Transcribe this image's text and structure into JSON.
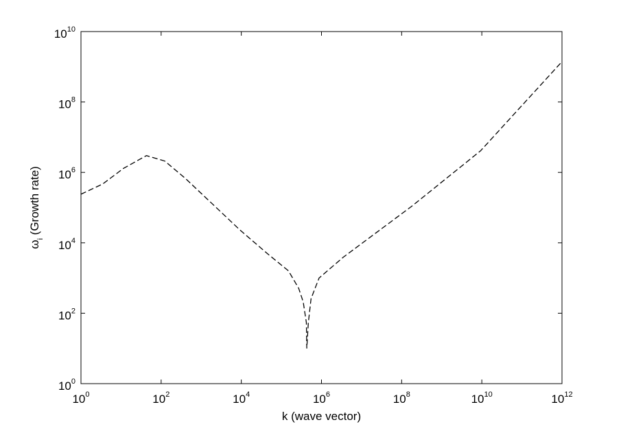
{
  "chart_data": {
    "type": "line",
    "xlabel": "k (wave vector)",
    "ylabel": {
      "symbol": "ω",
      "subscript": "i",
      "text": "(Growth rate)"
    },
    "x": [
      1,
      3.5,
      11.5,
      43,
      123,
      400,
      9300,
      46000,
      150000,
      270000,
      350000,
      420000,
      430000,
      470000,
      550000,
      870000,
      3500000,
      180000000,
      9300000000,
      1000000000000
    ],
    "series": [
      {
        "color": "#000000",
        "values": [
          240000,
          470000,
          1300000,
          3000000,
          2100000,
          680000,
          23000,
          4800,
          1600,
          510,
          210,
          54,
          10,
          54,
          260,
          1000,
          3900,
          110000,
          4100000,
          1400000000
        ]
      }
    ],
    "xscale": "log",
    "yscale": "log",
    "grid": false,
    "linestyle": "dashed",
    "xlim": [
      1,
      1000000000000
    ],
    "ylim": [
      1,
      10000000000
    ],
    "xticks": [
      {
        "value": 1,
        "label": "10",
        "exponent": "0"
      },
      {
        "value": 100,
        "label": "10",
        "exponent": "2"
      },
      {
        "value": 10000,
        "label": "10",
        "exponent": "4"
      },
      {
        "value": 1000000,
        "label": "10",
        "exponent": "6"
      },
      {
        "value": 100000000,
        "label": "10",
        "exponent": "8"
      },
      {
        "value": 10000000000,
        "label": "10",
        "exponent": "10"
      },
      {
        "value": 1000000000000,
        "label": "10",
        "exponent": "12"
      }
    ],
    "yticks": [
      {
        "value": 1,
        "label": "10",
        "exponent": "0"
      },
      {
        "value": 100,
        "label": "10",
        "exponent": "2"
      },
      {
        "value": 10000,
        "label": "10",
        "exponent": "4"
      },
      {
        "value": 1000000,
        "label": "10",
        "exponent": "6"
      },
      {
        "value": 100000000,
        "label": "10",
        "exponent": "8"
      },
      {
        "value": 10000000000,
        "label": "10",
        "exponent": "10"
      }
    ]
  }
}
